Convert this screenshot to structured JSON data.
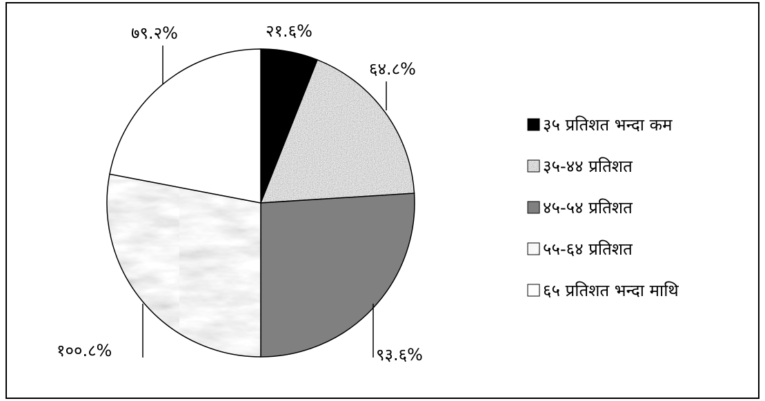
{
  "chart_data": {
    "type": "pie",
    "slices": [
      {
        "category": "३५ प्रतिशत भन्दा कम",
        "value": 21.6,
        "label": "२१.६%",
        "color": "#000000",
        "pattern": "solid"
      },
      {
        "category": "३५-४४ प्रतिशत",
        "value": 64.8,
        "label": "६४.८%",
        "color": "#b5b5b5",
        "pattern": "granite"
      },
      {
        "category": "४५-५४ प्रतिशत",
        "value": 93.6,
        "label": "९३.६%",
        "color": "#808080",
        "pattern": "solid"
      },
      {
        "category": "५५-६४ प्रतिशत",
        "value": 100.8,
        "label": "१००.८%",
        "color": "#e2e2e2",
        "pattern": "marble"
      },
      {
        "category": "६५ प्रतिशत भन्दा माथि",
        "value": 79.2,
        "label": "७९.२%",
        "color": "#ffffff",
        "pattern": "solid"
      }
    ],
    "legend_position": "right"
  }
}
